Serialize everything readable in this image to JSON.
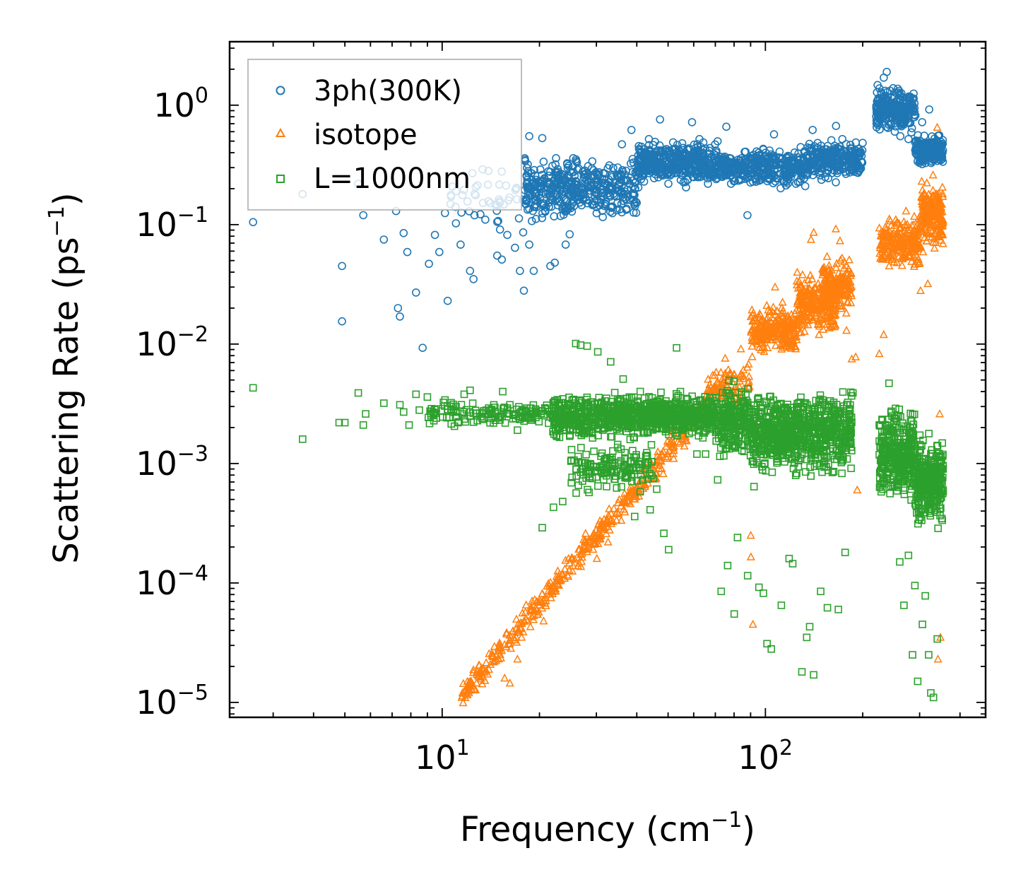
{
  "chart_data": {
    "type": "scatter",
    "title": "",
    "xlabel": "Frequency (cm",
    "xlabel_sup": "−1",
    "xlabel_end": ")",
    "ylabel": "Scattering Rate (ps",
    "ylabel_sup": "−1",
    "ylabel_end": ")",
    "xscale": "log",
    "yscale": "log",
    "xlim": [
      2.2,
      480
    ],
    "ylim": [
      7.5e-06,
      3.4
    ],
    "xticks": [
      {
        "value": 10,
        "base": "10",
        "exp": "1"
      },
      {
        "value": 100,
        "base": "10",
        "exp": "2"
      }
    ],
    "yticks": [
      {
        "value": 1e-05,
        "base": "10",
        "exp": "−5"
      },
      {
        "value": 0.0001,
        "base": "10",
        "exp": "−4"
      },
      {
        "value": 0.001,
        "base": "10",
        "exp": "−3"
      },
      {
        "value": 0.01,
        "base": "10",
        "exp": "−2"
      },
      {
        "value": 0.1,
        "base": "10",
        "exp": "−1"
      },
      {
        "value": 1,
        "base": "10",
        "exp": "0"
      }
    ],
    "legend_position": "top-left",
    "series": [
      {
        "name": "3ph(300K)",
        "marker": "circle",
        "color": "#1f77b4",
        "points": [
          [
            2.6,
            0.105
          ],
          [
            3.7,
            0.18
          ],
          [
            4.9,
            0.045
          ],
          [
            4.9,
            0.0155
          ],
          [
            5.5,
            0.22
          ],
          [
            5.7,
            0.12
          ],
          [
            6.6,
            0.075
          ],
          [
            7.2,
            0.13
          ],
          [
            7.3,
            0.02
          ],
          [
            7.4,
            0.017
          ],
          [
            7.6,
            0.085
          ],
          [
            7.8,
            0.059
          ],
          [
            8.3,
            0.027
          ],
          [
            8.7,
            0.0093
          ],
          [
            9.1,
            0.047
          ],
          [
            9.5,
            0.082
          ],
          [
            9.8,
            0.059
          ],
          [
            10.2,
            0.125
          ],
          [
            10.4,
            0.023
          ],
          [
            11.4,
            0.068
          ],
          [
            12.2,
            0.041
          ],
          [
            12.5,
            0.035
          ],
          [
            13.6,
            0.11
          ],
          [
            14.8,
            0.055
          ],
          [
            15.3,
            0.051
          ],
          [
            15.9,
            0.082
          ],
          [
            16.8,
            0.064
          ],
          [
            17.4,
            0.041
          ],
          [
            17.9,
            0.028
          ],
          [
            18.6,
            0.068
          ],
          [
            19.2,
            0.041
          ],
          [
            19.6,
            0.14
          ],
          [
            21.6,
            0.045
          ],
          [
            22.3,
            0.048
          ],
          [
            24.1,
            0.068
          ],
          [
            24.8,
            0.083
          ],
          [
            22.5,
            0.36
          ],
          [
            20.4,
            0.53
          ],
          [
            18.6,
            0.55
          ],
          [
            26.0,
            0.34
          ],
          [
            28.1,
            0.21
          ],
          [
            31.1,
            0.17
          ],
          [
            33.2,
            0.14
          ],
          [
            36.0,
            0.47
          ],
          [
            38.5,
            0.62
          ],
          [
            40.4,
            0.25
          ],
          [
            43.6,
            0.52
          ],
          [
            47.2,
            0.76
          ],
          [
            50.1,
            0.22
          ],
          [
            55.3,
            0.48
          ],
          [
            59.3,
            0.72
          ],
          [
            62.5,
            0.52
          ],
          [
            66.4,
            0.22
          ],
          [
            70.2,
            0.38
          ],
          [
            75.7,
            0.66
          ],
          [
            82.3,
            0.35
          ],
          [
            88.0,
            0.12
          ],
          [
            93.1,
            0.24
          ],
          [
            100.2,
            0.4
          ],
          [
            106.3,
            0.57
          ],
          [
            112.4,
            0.33
          ],
          [
            118.5,
            0.26
          ],
          [
            124.3,
            0.22
          ],
          [
            132.8,
            0.21
          ],
          [
            140.0,
            0.62
          ],
          [
            147.1,
            0.4
          ],
          [
            153.2,
            0.25
          ],
          [
            160.0,
            0.38
          ],
          [
            165.4,
            0.67
          ],
          [
            173.0,
            0.52
          ],
          [
            183.1,
            0.41
          ],
          [
            189.3,
            0.34
          ],
          [
            222.5,
            1.03
          ],
          [
            232.4,
            1.7
          ],
          [
            243.1,
            1.32
          ],
          [
            255.0,
            1.06
          ],
          [
            265.2,
            0.72
          ],
          [
            277.0,
            0.52
          ],
          [
            291.2,
            0.82
          ],
          [
            305.4,
            0.72
          ],
          [
            321.2,
            0.92
          ],
          [
            334.5,
            0.36
          ],
          [
            348.0,
            0.46
          ],
          [
            237.4,
            1.9
          ],
          [
            251.3,
            0.6
          ],
          [
            261.4,
            0.55
          ],
          [
            296.3,
            0.56
          ],
          [
            312.0,
            0.47
          ]
        ],
        "bands": [
          {
            "x0": 10.5,
            "x1": 18.5,
            "ycenter": 0.16,
            "spread": 2.2,
            "n": 50
          },
          {
            "x0": 18.0,
            "x1": 40.0,
            "ycenter": 0.2,
            "spread": 1.9,
            "n": 420
          },
          {
            "x0": 40.0,
            "x1": 72.0,
            "ycenter": 0.33,
            "spread": 1.6,
            "n": 430
          },
          {
            "x0": 72.0,
            "x1": 130.0,
            "ycenter": 0.3,
            "spread": 1.5,
            "n": 330
          },
          {
            "x0": 130.0,
            "x1": 200.0,
            "ycenter": 0.34,
            "spread": 1.5,
            "n": 260
          },
          {
            "x0": 220.0,
            "x1": 290.0,
            "ycenter": 0.9,
            "spread": 1.6,
            "n": 230
          },
          {
            "x0": 290.0,
            "x1": 355.0,
            "ycenter": 0.42,
            "spread": 1.4,
            "n": 200
          }
        ]
      },
      {
        "name": "isotope",
        "marker": "triangle",
        "color": "#ff7f0e",
        "points": [
          [
            11.5,
            1.1e-05
          ],
          [
            12.1,
            1.2e-05
          ],
          [
            13.2,
            1.8e-05
          ],
          [
            14.5,
            2.2e-05
          ],
          [
            15.6,
            1.595e-05
          ],
          [
            16.2,
            1.45e-05
          ],
          [
            17.1,
            2.3e-05
          ],
          [
            17.6,
            3.5e-05
          ],
          [
            19.2,
            5.8e-05
          ],
          [
            20.6,
            4.8e-05
          ],
          [
            21.7,
            7.5e-05
          ],
          [
            23.1,
            0.00011
          ],
          [
            24.6,
            0.00016
          ],
          [
            27.4,
            0.00023
          ],
          [
            30.1,
            0.00016
          ],
          [
            32.6,
            0.00022
          ],
          [
            35.1,
            0.00038
          ],
          [
            38.2,
            0.00046
          ],
          [
            42.4,
            0.00064
          ],
          [
            48.3,
            0.00082
          ],
          [
            52.0,
            0.0011
          ],
          [
            56.1,
            0.0014
          ],
          [
            61.3,
            0.0021
          ],
          [
            66.2,
            0.0031
          ],
          [
            70.4,
            0.0058
          ],
          [
            75.1,
            0.0076
          ],
          [
            78.4,
            0.0035
          ],
          [
            84.0,
            0.0091
          ],
          [
            90.1,
            0.00025
          ],
          [
            90.2,
            0.000165
          ],
          [
            91.5,
            4.5e-05
          ],
          [
            93.3,
            0.00215
          ],
          [
            101.0,
            0.021
          ],
          [
            107.1,
            0.03
          ],
          [
            113.3,
            0.019
          ],
          [
            120.0,
            0.0092
          ],
          [
            130.3,
            0.038
          ],
          [
            138.4,
            0.075
          ],
          [
            141.1,
            0.086
          ],
          [
            146.5,
            0.012
          ],
          [
            155.0,
            0.026
          ],
          [
            165.1,
            0.092
          ],
          [
            170.1,
            0.073
          ],
          [
            178.2,
            0.013
          ],
          [
            185.0,
            0.0075
          ],
          [
            190.2,
            0.0078
          ],
          [
            192.3,
            0.0006
          ],
          [
            225.0,
            0.0083
          ],
          [
            232.3,
            0.012
          ],
          [
            241.5,
            0.045
          ],
          [
            256.6,
            0.079
          ],
          [
            272.3,
            0.13
          ],
          [
            290.1,
            0.065
          ],
          [
            302.0,
            0.028
          ],
          [
            318.0,
            0.032
          ],
          [
            330.1,
            0.26
          ],
          [
            340.0,
            0.65
          ],
          [
            342.0,
            2.3e-05
          ],
          [
            346.1,
            0.0026
          ],
          [
            348.0,
            3.5e-05
          ]
        ],
        "bands": [
          {
            "x0": 11.5,
            "x1": 66.0,
            "yfit": true,
            "y_at_x0": 1.15e-05,
            "y_at_x1": 0.0031,
            "spread": 1.35,
            "n": 420
          },
          {
            "x0": 66.0,
            "x1": 90.0,
            "ycenter": 0.0045,
            "spread": 1.6,
            "n": 90
          },
          {
            "x0": 90.0,
            "x1": 125.0,
            "ycenter": 0.013,
            "spread": 1.7,
            "n": 240
          },
          {
            "x0": 125.0,
            "x1": 165.0,
            "ycenter": 0.022,
            "spread": 1.9,
            "n": 250
          },
          {
            "x0": 150.0,
            "x1": 185.0,
            "ycenter": 0.03,
            "spread": 1.9,
            "n": 180
          },
          {
            "x0": 225.0,
            "x1": 300.0,
            "ycenter": 0.07,
            "spread": 1.7,
            "n": 230
          },
          {
            "x0": 300.0,
            "x1": 355.0,
            "ycenter": 0.12,
            "spread": 2.0,
            "n": 220
          }
        ]
      },
      {
        "name": "L=1000nm",
        "marker": "square",
        "color": "#2ca02c",
        "points": [
          [
            2.6,
            0.0043
          ],
          [
            3.7,
            0.0016
          ],
          [
            4.8,
            0.0022
          ],
          [
            5.0,
            0.0022
          ],
          [
            5.5,
            0.0039
          ],
          [
            5.7,
            0.0021
          ],
          [
            5.8,
            0.0026
          ],
          [
            6.6,
            0.0032
          ],
          [
            7.4,
            0.0031
          ],
          [
            7.6,
            0.0027
          ],
          [
            7.9,
            0.0021
          ],
          [
            8.3,
            0.0038
          ],
          [
            8.5,
            0.0028
          ],
          [
            9.0,
            0.0036
          ],
          [
            9.6,
            0.0024
          ],
          [
            10.2,
            0.0034
          ],
          [
            11.2,
            0.0022
          ],
          [
            11.7,
            0.0038
          ],
          [
            12.2,
            0.0041
          ],
          [
            13.3,
            0.0024
          ],
          [
            14.6,
            0.0023
          ],
          [
            15.4,
            0.004
          ],
          [
            16.2,
            0.0031
          ],
          [
            17.1,
            0.0019
          ],
          [
            18.0,
            0.0024
          ],
          [
            20.4,
            0.00029
          ],
          [
            22.1,
            0.00043
          ],
          [
            23.6,
            0.00048
          ],
          [
            25.1,
            0.00069
          ],
          [
            25.9,
            0.0101
          ],
          [
            26.8,
            0.0098
          ],
          [
            28.1,
            0.0096
          ],
          [
            30.3,
            0.0086
          ],
          [
            33.2,
            0.0071
          ],
          [
            36.3,
            0.0051
          ],
          [
            39.4,
            0.00036
          ],
          [
            41.0,
            0.00058
          ],
          [
            44.0,
            0.00041
          ],
          [
            46.1,
            0.00061
          ],
          [
            48.5,
            0.00026
          ],
          [
            50.2,
            0.00019
          ],
          [
            53.1,
            0.0093
          ],
          [
            57.0,
            0.0035
          ],
          [
            61.4,
            0.0012
          ],
          [
            65.3,
            0.0012
          ],
          [
            71.2,
            0.00073
          ],
          [
            73.0,
            8.5e-05
          ],
          [
            76.4,
            0.00014
          ],
          [
            80.1,
            5.5e-05
          ],
          [
            82.0,
            0.00024
          ],
          [
            88.1,
            0.000115
          ],
          [
            92.2,
            0.00064
          ],
          [
            95.5,
            9.2e-05
          ],
          [
            98.6,
            8.2e-05
          ],
          [
            101.2,
            3.1e-05
          ],
          [
            104.3,
            2.8e-05
          ],
          [
            112.0,
            6.5e-05
          ],
          [
            118.4,
            0.00016
          ],
          [
            121.5,
            0.000145
          ],
          [
            129.7,
            1.8e-05
          ],
          [
            134.2,
            3.5e-05
          ],
          [
            137.1,
            4.3e-05
          ],
          [
            141.0,
            1.7e-05
          ],
          [
            148.3,
            8.5e-05
          ],
          [
            155.5,
            6.2e-05
          ],
          [
            168.2,
            6e-05
          ],
          [
            176.5,
            0.00018
          ],
          [
            182.0,
            0.00215
          ],
          [
            186.5,
            0.0039
          ],
          [
            230.3,
            0.0023
          ],
          [
            241.2,
            0.0047
          ],
          [
            251.0,
            0.0024
          ],
          [
            260.4,
            0.00015
          ],
          [
            268.2,
            6.5e-05
          ],
          [
            277.1,
            0.00017
          ],
          [
            285.3,
            2.5e-05
          ],
          [
            290.0,
            9.5e-05
          ],
          [
            296.0,
            1.5e-05
          ],
          [
            306.1,
            4.5e-05
          ],
          [
            312.3,
            7.8e-05
          ],
          [
            320.0,
            2.5e-05
          ],
          [
            325.0,
            1.2e-05
          ],
          [
            331.0,
            1.1e-05
          ],
          [
            340.2,
            3.4e-05
          ]
        ],
        "bands": [
          {
            "x0": 9.0,
            "x1": 22.0,
            "ycenter": 0.0026,
            "spread": 1.3,
            "n": 140
          },
          {
            "x0": 22.0,
            "x1": 50.0,
            "ycenter": 0.0025,
            "spread": 1.6,
            "n": 620
          },
          {
            "x0": 25.0,
            "x1": 45.0,
            "ycenter": 0.0009,
            "spread": 1.7,
            "n": 150
          },
          {
            "x0": 50.0,
            "x1": 70.0,
            "ycenter": 0.0025,
            "spread": 1.6,
            "n": 260
          },
          {
            "x0": 70.0,
            "x1": 91.0,
            "ycenter": 0.0023,
            "spread": 2.2,
            "n": 230
          },
          {
            "x0": 91.0,
            "x1": 125.0,
            "ycenter": 0.0018,
            "spread": 2.4,
            "n": 330
          },
          {
            "x0": 125.0,
            "x1": 185.0,
            "ycenter": 0.0018,
            "spread": 2.4,
            "n": 380
          },
          {
            "x0": 225.0,
            "x1": 290.0,
            "ycenter": 0.0012,
            "spread": 2.6,
            "n": 320
          },
          {
            "x0": 290.0,
            "x1": 355.0,
            "ycenter": 0.0007,
            "spread": 2.6,
            "n": 300
          }
        ]
      }
    ]
  }
}
